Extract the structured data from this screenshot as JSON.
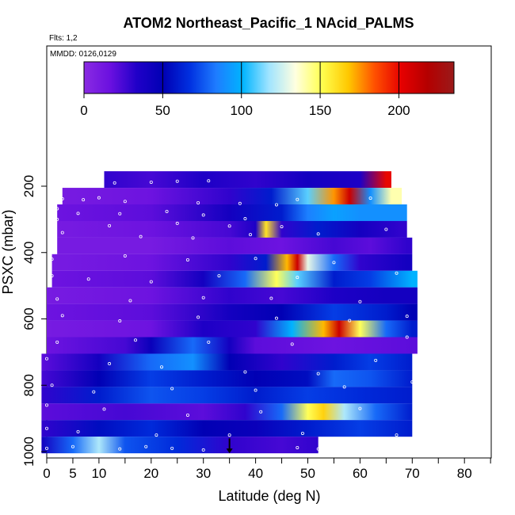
{
  "header": {
    "title": "ATOM2 Northeast_Pacific_1 NAcid_PALMS",
    "flights_note": "Flts: 1,2",
    "dates_note": "MMDD: 0126,0129"
  },
  "colors": {
    "palette": [
      "#8a2be2",
      "#6a10e0",
      "#2000c8",
      "#0000b4",
      "#0030e0",
      "#1e7cff",
      "#00b4ff",
      "#a0e4ff",
      "#ffffe0",
      "#ffff50",
      "#ffc800",
      "#ff5000",
      "#e60000",
      "#b40000",
      "#9a1a1a"
    ],
    "marker": "#ffffff",
    "arrow": "#000000"
  },
  "chart_data": {
    "type": "heatmap",
    "title": "ATOM2 Northeast_Pacific_1 NAcid_PALMS",
    "xlabel": "Latitude (deg N)",
    "ylabel": "PSXC (mbar)",
    "xlim": [
      0,
      85
    ],
    "ylim": [
      1000,
      0
    ],
    "x_ticks": [
      0,
      5,
      10,
      20,
      30,
      40,
      50,
      60,
      70,
      80
    ],
    "y_ticks": [
      200,
      400,
      600,
      800,
      1000
    ],
    "colorbar": {
      "ticks": [
        0,
        50,
        100,
        150,
        200
      ],
      "range": [
        0,
        235
      ]
    },
    "rows": [
      {
        "p": 180,
        "lat": [
          11,
          66
        ],
        "anchors": [
          [
            11,
            30
          ],
          [
            20,
            25
          ],
          [
            30,
            35
          ],
          [
            40,
            30
          ],
          [
            50,
            40
          ],
          [
            60,
            35
          ],
          [
            65,
            200
          ]
        ]
      },
      {
        "p": 230,
        "lat": [
          3,
          68
        ],
        "anchors": [
          [
            3,
            10
          ],
          [
            20,
            15
          ],
          [
            35,
            30
          ],
          [
            43,
            60
          ],
          [
            50,
            110
          ],
          [
            55,
            175
          ],
          [
            58,
            210
          ],
          [
            62,
            90
          ],
          [
            66,
            140
          ]
        ]
      },
      {
        "p": 280,
        "lat": [
          2,
          69
        ],
        "anchors": [
          [
            2,
            15
          ],
          [
            20,
            20
          ],
          [
            35,
            40
          ],
          [
            45,
            60
          ],
          [
            50,
            85
          ],
          [
            55,
            95
          ],
          [
            60,
            90
          ],
          [
            68,
            90
          ]
        ]
      },
      {
        "p": 330,
        "lat": [
          2,
          69
        ],
        "anchors": [
          [
            2,
            10
          ],
          [
            20,
            15
          ],
          [
            35,
            25
          ],
          [
            40,
            35
          ],
          [
            42,
            160
          ],
          [
            45,
            30
          ],
          [
            52,
            60
          ],
          [
            60,
            40
          ],
          [
            68,
            30
          ]
        ]
      },
      {
        "p": 380,
        "lat": [
          2,
          70
        ],
        "anchors": [
          [
            2,
            10
          ],
          [
            20,
            10
          ],
          [
            35,
            20
          ],
          [
            45,
            15
          ],
          [
            55,
            25
          ],
          [
            62,
            20
          ],
          [
            69,
            30
          ]
        ]
      },
      {
        "p": 430,
        "lat": [
          1,
          70
        ],
        "anchors": [
          [
            1,
            10
          ],
          [
            20,
            15
          ],
          [
            35,
            30
          ],
          [
            42,
            60
          ],
          [
            46,
            170
          ],
          [
            48,
            210
          ],
          [
            50,
            130
          ],
          [
            55,
            80
          ],
          [
            60,
            30
          ],
          [
            69,
            40
          ]
        ]
      },
      {
        "p": 480,
        "lat": [
          1,
          71
        ],
        "anchors": [
          [
            1,
            15
          ],
          [
            20,
            20
          ],
          [
            30,
            40
          ],
          [
            38,
            80
          ],
          [
            44,
            150
          ],
          [
            48,
            110
          ],
          [
            55,
            60
          ],
          [
            62,
            70
          ],
          [
            70,
            100
          ]
        ]
      },
      {
        "p": 530,
        "lat": [
          0,
          71
        ],
        "anchors": [
          [
            0,
            10
          ],
          [
            20,
            15
          ],
          [
            35,
            30
          ],
          [
            45,
            25
          ],
          [
            55,
            35
          ],
          [
            65,
            40
          ],
          [
            70,
            40
          ]
        ]
      },
      {
        "p": 580,
        "lat": [
          0,
          71
        ],
        "anchors": [
          [
            0,
            15
          ],
          [
            20,
            20
          ],
          [
            35,
            40
          ],
          [
            45,
            50
          ],
          [
            55,
            70
          ],
          [
            65,
            60
          ],
          [
            70,
            50
          ]
        ]
      },
      {
        "p": 630,
        "lat": [
          0,
          71
        ],
        "anchors": [
          [
            0,
            10
          ],
          [
            20,
            15
          ],
          [
            30,
            35
          ],
          [
            40,
            30
          ],
          [
            47,
            100
          ],
          [
            53,
            170
          ],
          [
            56,
            210
          ],
          [
            60,
            150
          ],
          [
            65,
            80
          ],
          [
            70,
            60
          ]
        ]
      },
      {
        "p": 680,
        "lat": [
          0,
          71
        ],
        "anchors": [
          [
            0,
            15
          ],
          [
            15,
            25
          ],
          [
            20,
            45
          ],
          [
            28,
            80
          ],
          [
            35,
            40
          ],
          [
            40,
            20
          ],
          [
            55,
            15
          ],
          [
            70,
            20
          ]
        ]
      },
      {
        "p": 730,
        "lat": [
          -1,
          70
        ],
        "anchors": [
          [
            -1,
            20
          ],
          [
            10,
            40
          ],
          [
            20,
            80
          ],
          [
            28,
            90
          ],
          [
            35,
            50
          ],
          [
            45,
            30
          ],
          [
            55,
            60
          ],
          [
            62,
            70
          ],
          [
            70,
            60
          ]
        ]
      },
      {
        "p": 780,
        "lat": [
          -1,
          70
        ],
        "anchors": [
          [
            -1,
            25
          ],
          [
            10,
            50
          ],
          [
            20,
            70
          ],
          [
            30,
            60
          ],
          [
            40,
            50
          ],
          [
            50,
            55
          ],
          [
            55,
            80
          ],
          [
            62,
            75
          ],
          [
            70,
            60
          ]
        ]
      },
      {
        "p": 830,
        "lat": [
          -1,
          70
        ],
        "anchors": [
          [
            -1,
            30
          ],
          [
            10,
            60
          ],
          [
            20,
            75
          ],
          [
            30,
            70
          ],
          [
            40,
            60
          ],
          [
            50,
            70
          ],
          [
            60,
            65
          ],
          [
            70,
            60
          ]
        ]
      },
      {
        "p": 880,
        "lat": [
          -1,
          70
        ],
        "anchors": [
          [
            -1,
            20
          ],
          [
            15,
            25
          ],
          [
            30,
            20
          ],
          [
            38,
            30
          ],
          [
            45,
            80
          ],
          [
            50,
            150
          ],
          [
            53,
            165
          ],
          [
            57,
            120
          ],
          [
            63,
            80
          ],
          [
            70,
            60
          ]
        ]
      },
      {
        "p": 930,
        "lat": [
          -1,
          70
        ],
        "anchors": [
          [
            -1,
            30
          ],
          [
            10,
            55
          ],
          [
            20,
            65
          ],
          [
            30,
            50
          ],
          [
            40,
            45
          ],
          [
            50,
            60
          ],
          [
            60,
            70
          ],
          [
            70,
            60
          ]
        ]
      },
      {
        "p": 980,
        "lat": [
          -1,
          52
        ],
        "anchors": [
          [
            -1,
            40
          ],
          [
            5,
            80
          ],
          [
            10,
            120
          ],
          [
            15,
            75
          ],
          [
            25,
            65
          ],
          [
            35,
            30
          ],
          [
            45,
            25
          ],
          [
            52,
            30
          ]
        ]
      }
    ],
    "sample_points": [
      [
        13,
        190
      ],
      [
        20,
        188
      ],
      [
        25,
        185
      ],
      [
        31,
        184
      ],
      [
        3,
        238
      ],
      [
        7,
        241
      ],
      [
        10,
        235
      ],
      [
        15,
        246
      ],
      [
        29,
        250
      ],
      [
        37,
        252
      ],
      [
        44,
        256
      ],
      [
        48,
        240
      ],
      [
        62,
        236
      ],
      [
        2,
        268
      ],
      [
        6,
        282
      ],
      [
        14,
        283
      ],
      [
        23,
        276
      ],
      [
        30,
        287
      ],
      [
        38,
        298
      ],
      [
        2,
        300
      ],
      [
        12,
        319
      ],
      [
        25,
        312
      ],
      [
        35,
        320
      ],
      [
        45,
        322
      ],
      [
        3,
        340
      ],
      [
        18,
        352
      ],
      [
        28,
        356
      ],
      [
        39,
        346
      ],
      [
        52,
        344
      ],
      [
        65,
        330
      ],
      [
        1,
        420
      ],
      [
        15,
        410
      ],
      [
        27,
        422
      ],
      [
        40,
        418
      ],
      [
        55,
        430
      ],
      [
        1,
        470
      ],
      [
        8,
        480
      ],
      [
        20,
        488
      ],
      [
        33,
        470
      ],
      [
        48,
        475
      ],
      [
        67,
        462
      ],
      [
        2,
        540
      ],
      [
        16,
        545
      ],
      [
        30,
        536
      ],
      [
        43,
        538
      ],
      [
        60,
        548
      ],
      [
        3,
        590
      ],
      [
        14,
        606
      ],
      [
        29,
        595
      ],
      [
        44,
        598
      ],
      [
        58,
        605
      ],
      [
        69,
        592
      ],
      [
        2,
        670
      ],
      [
        17,
        664
      ],
      [
        31,
        670
      ],
      [
        47,
        676
      ],
      [
        69,
        655
      ],
      [
        0,
        720
      ],
      [
        12,
        735
      ],
      [
        22,
        745
      ],
      [
        38,
        760
      ],
      [
        52,
        765
      ],
      [
        63,
        725
      ],
      [
        1,
        800
      ],
      [
        9,
        820
      ],
      [
        24,
        810
      ],
      [
        40,
        815
      ],
      [
        57,
        805
      ],
      [
        70,
        790
      ],
      [
        0,
        860
      ],
      [
        11,
        872
      ],
      [
        27,
        890
      ],
      [
        41,
        880
      ],
      [
        60,
        870
      ],
      [
        0,
        930
      ],
      [
        6,
        940
      ],
      [
        21,
        950
      ],
      [
        35,
        950
      ],
      [
        49,
        945
      ],
      [
        67,
        950
      ],
      [
        0,
        990
      ],
      [
        5,
        985
      ],
      [
        14,
        992
      ],
      [
        19,
        985
      ],
      [
        24,
        990
      ],
      [
        30,
        995
      ],
      [
        48,
        988
      ],
      [
        52,
        992
      ]
    ],
    "arrow": {
      "lat": 35,
      "p_from": 960,
      "p_to": 1005
    }
  }
}
